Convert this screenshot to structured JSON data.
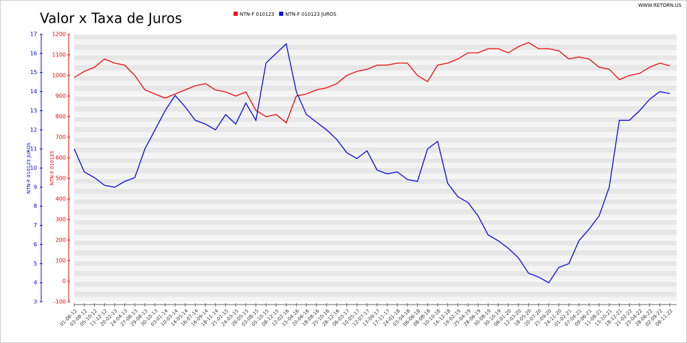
{
  "chart_data": {
    "type": "line",
    "title": "Valor x Taxa de Juros",
    "source": "WWW.RETORN.US",
    "ylabel": "NTN-F 010123",
    "y2label": "NTN-F 010123 JUROS",
    "categories": [
      "01-06-12",
      "03-08-12",
      "05-10-12",
      "11-12-12",
      "20-02-13",
      "24-04-13",
      "27-06-13",
      "29-08-13",
      "30-10-13",
      "03-01-14",
      "10-03-14",
      "14-05-14",
      "16-07-14",
      "16-09-14",
      "18-11-14",
      "21-01-15",
      "24-03-15",
      "26-05-15",
      "03-08-15",
      "05-10-15",
      "08-12-15",
      "12-02-16",
      "15-04-16",
      "20-06-16",
      "18-08-16",
      "25-10-16",
      "28-12-16",
      "06-03-17",
      "10-05-17",
      "12-07-17",
      "13-09-17",
      "17-11-17",
      "24-01-18",
      "03-04-18",
      "06-06-18",
      "08-08-18",
      "10-10-18",
      "14-12-18",
      "19-02-19",
      "25-04-19",
      "28-06-19",
      "30-08-19",
      "30-10-19",
      "06-01-20",
      "12-03-20",
      "18-05-20",
      "20-07-20",
      "21-09-20",
      "24-11-20",
      "01-02-21",
      "07-04-21",
      "09-06-21",
      "11-08-21",
      "13-10-21",
      "18-12-21",
      "21-02-22",
      "23-04-22",
      "28-06-22",
      "02-09-22",
      "08-11-22"
    ],
    "series": [
      {
        "name": "NTN-F 010123",
        "color": "#ee0000",
        "values": [
          990,
          1020,
          1040,
          1080,
          1060,
          1050,
          1000,
          930,
          910,
          890,
          910,
          930,
          950,
          960,
          930,
          920,
          900,
          920,
          830,
          800,
          810,
          770,
          900,
          910,
          930,
          940,
          960,
          1000,
          1020,
          1030,
          1050,
          1050,
          1060,
          1060,
          1000,
          970,
          1050,
          1060,
          1080,
          1110,
          1110,
          1130,
          1130,
          1110,
          1140,
          1160,
          1130,
          1130,
          1120,
          1080,
          1090,
          1080,
          1040,
          1030,
          980,
          1000,
          1010,
          1040,
          1060,
          1047
        ]
      },
      {
        "name": "NTN-F 010123 JUROS",
        "color": "#0000ee",
        "axis": "y2",
        "values": [
          11.0,
          9.8,
          9.5,
          9.1,
          9.0,
          9.3,
          9.5,
          11.0,
          12.0,
          13.0,
          13.8,
          13.2,
          12.5,
          12.3,
          12.0,
          12.8,
          12.3,
          13.4,
          12.5,
          15.5,
          16.0,
          16.5,
          14.0,
          12.8,
          12.4,
          12.0,
          11.5,
          10.8,
          10.5,
          10.9,
          9.9,
          9.7,
          9.8,
          9.4,
          9.3,
          11.0,
          11.4,
          9.2,
          8.5,
          8.2,
          7.5,
          6.5,
          6.2,
          5.8,
          5.3,
          4.5,
          4.3,
          4.0,
          4.8,
          5.0,
          6.2,
          6.8,
          7.5,
          9.0,
          12.5,
          12.5,
          13.0,
          13.6,
          14.0,
          13.9
        ]
      }
    ],
    "ylim": [
      -100,
      1200
    ],
    "yticks": [
      -100,
      0,
      100,
      200,
      300,
      400,
      500,
      600,
      700,
      800,
      900,
      1000,
      1100,
      1200
    ],
    "y2lim": [
      3,
      17
    ],
    "y2ticks": [
      3,
      4,
      5,
      6,
      7,
      8,
      9,
      10,
      11,
      12,
      13,
      14,
      15,
      16,
      17
    ],
    "grid": true
  }
}
